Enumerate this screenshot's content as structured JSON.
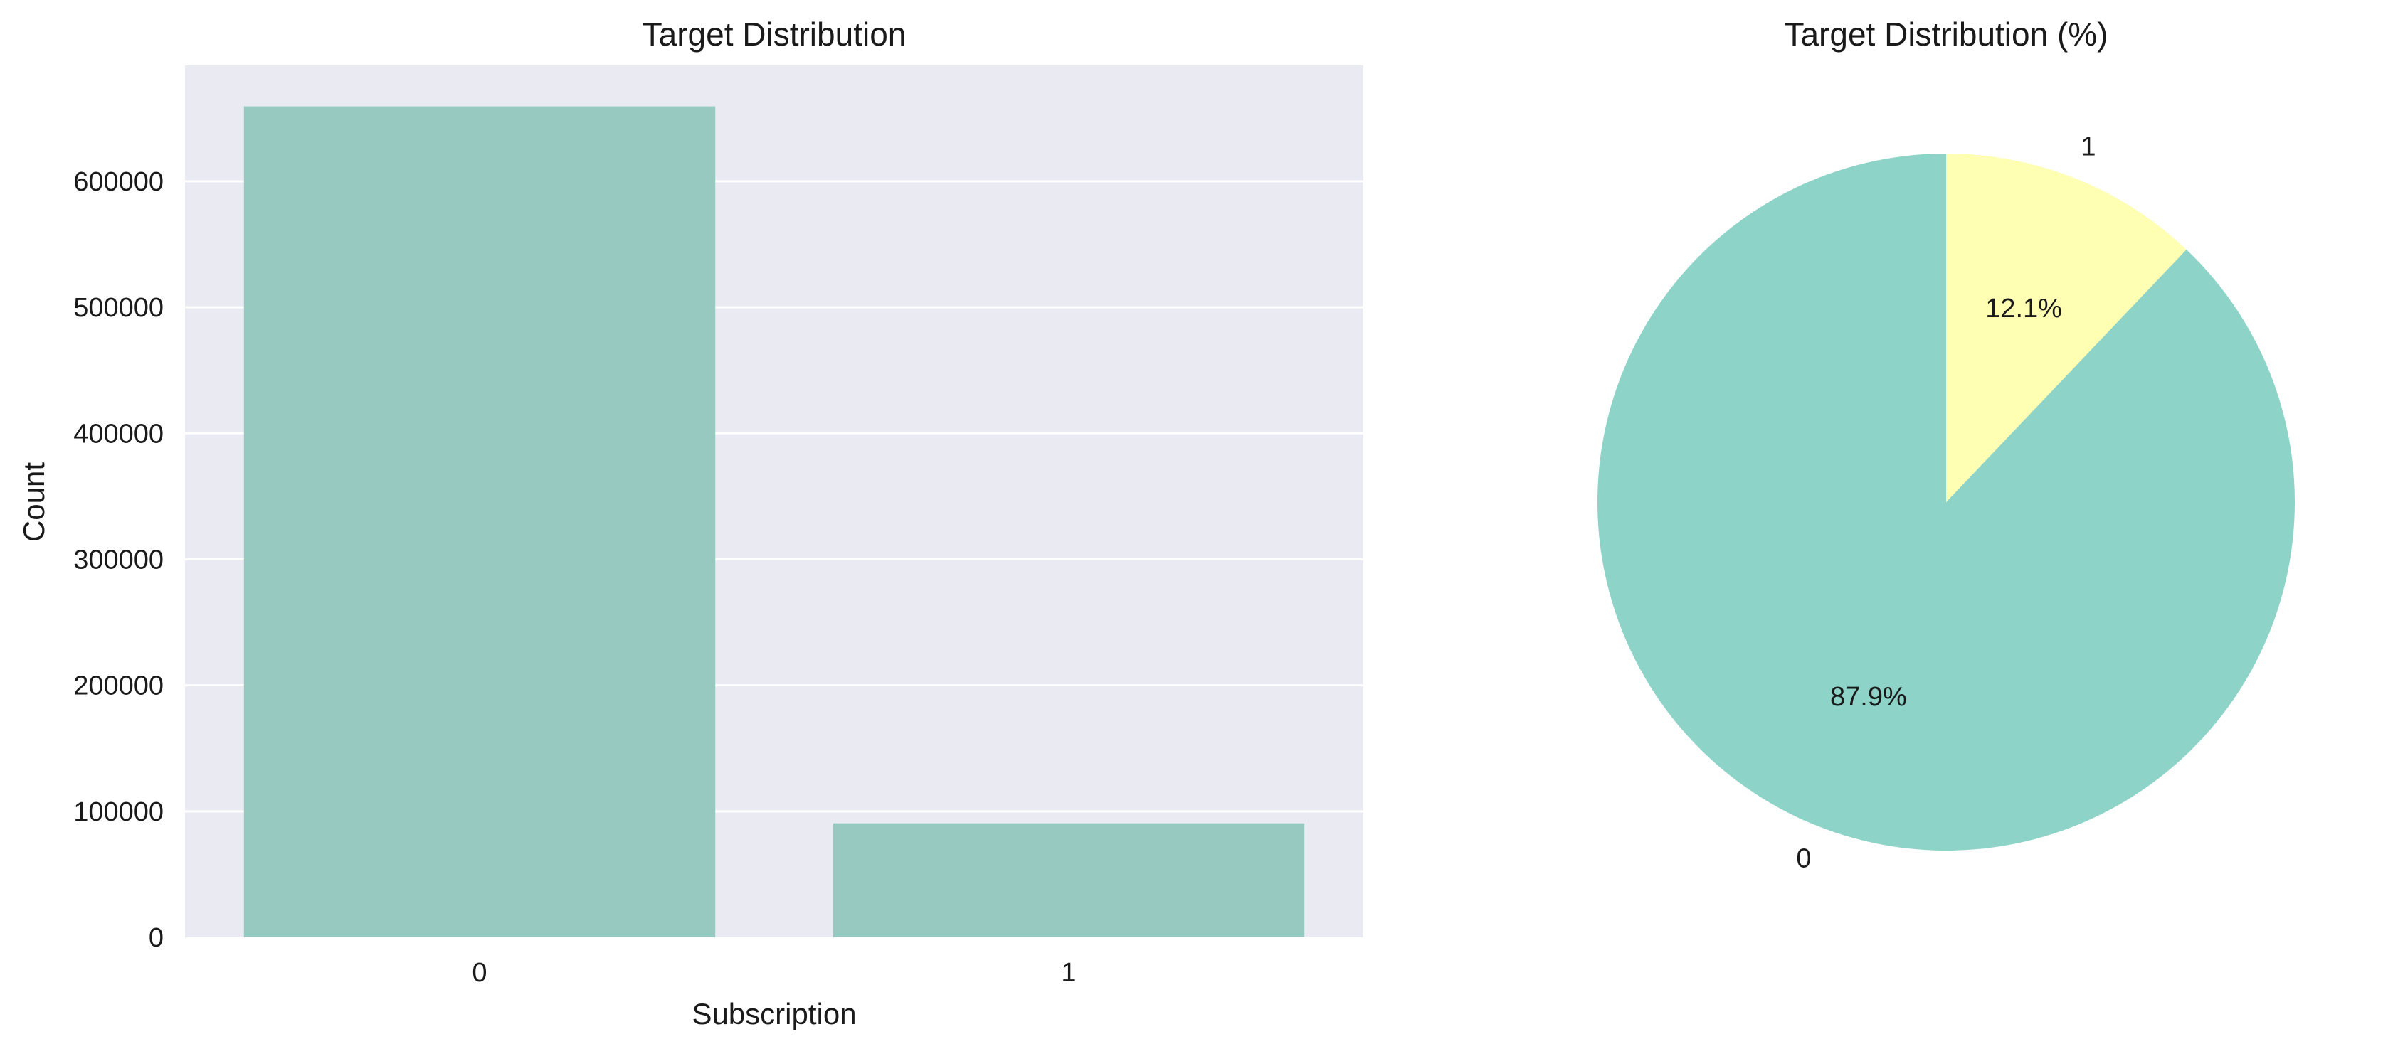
{
  "chart_data": [
    {
      "type": "bar",
      "title": "Target Distribution",
      "xlabel": "Subscription",
      "ylabel": "Count",
      "categories": [
        "0",
        "1"
      ],
      "values": [
        659512,
        90488
      ],
      "ylim": [
        0,
        692000
      ],
      "yticks": [
        0,
        100000,
        200000,
        300000,
        400000,
        500000,
        600000
      ],
      "ytick_labels": [
        "0",
        "100000",
        "200000",
        "300000",
        "400000",
        "500000",
        "600000"
      ],
      "grid": true,
      "bar_color": "#97c9c0",
      "background_color": "#eaeaf2",
      "grid_color": "#ffffff"
    },
    {
      "type": "pie",
      "title": "Target Distribution (%)",
      "labels": [
        "0",
        "1"
      ],
      "values": [
        87.9,
        12.1
      ],
      "percent_labels": [
        "87.9%",
        "12.1%"
      ],
      "colors": [
        "#8dd3c7",
        "#ffffb3"
      ],
      "start_angle_deg": 90,
      "direction": "counterclockwise"
    }
  ]
}
